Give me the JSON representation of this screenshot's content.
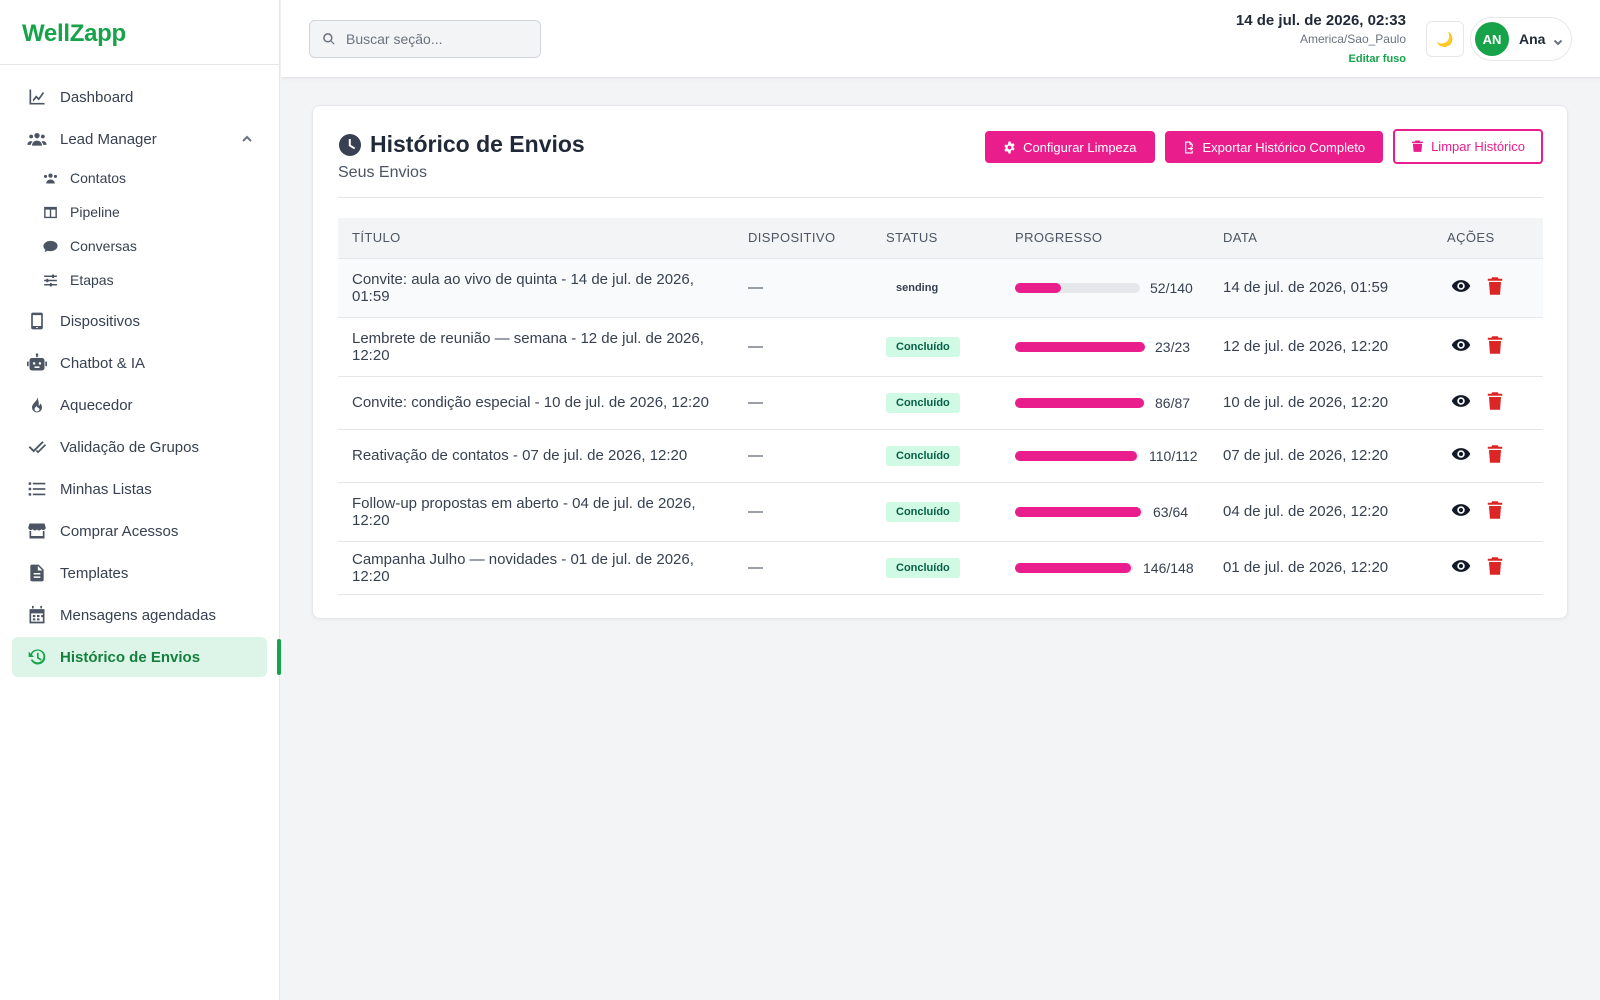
{
  "app": {
    "logo": "WellZapp"
  },
  "sidebar": {
    "items": [
      {
        "label": "Dashboard",
        "icon": "chart-line-icon"
      },
      {
        "label": "Lead Manager",
        "icon": "users-icon",
        "expanded": true,
        "children": [
          {
            "label": "Contatos",
            "icon": "contacts-icon"
          },
          {
            "label": "Pipeline",
            "icon": "columns-icon"
          },
          {
            "label": "Conversas",
            "icon": "chat-icon"
          },
          {
            "label": "Etapas",
            "icon": "sliders-icon"
          }
        ]
      },
      {
        "label": "Dispositivos",
        "icon": "mobile-icon"
      },
      {
        "label": "Chatbot & IA",
        "icon": "robot-icon"
      },
      {
        "label": "Aquecedor",
        "icon": "fire-icon"
      },
      {
        "label": "Validação de Grupos",
        "icon": "double-check-icon"
      },
      {
        "label": "Minhas Listas",
        "icon": "list-icon"
      },
      {
        "label": "Comprar Acessos",
        "icon": "store-icon"
      },
      {
        "label": "Templates",
        "icon": "file-icon"
      },
      {
        "label": "Mensagens agendadas",
        "icon": "calendar-icon"
      },
      {
        "label": "Histórico de Envios",
        "icon": "history-icon",
        "active": true
      }
    ]
  },
  "header": {
    "search_placeholder": "Buscar seção...",
    "datetime": "14 de jul. de 2026, 02:33",
    "timezone": "America/Sao_Paulo",
    "edit_tz": "Editar fuso",
    "user": {
      "initials": "AN",
      "name": "Ana"
    }
  },
  "main": {
    "title": "Histórico de Envios",
    "subtitle": "Seus Envios",
    "buttons": {
      "configure": "Configurar Limpeza",
      "export": "Exportar Histórico Completo",
      "clear": "Limpar Histórico"
    },
    "table": {
      "headers": {
        "title": "TÍTULO",
        "device": "DISPOSITIVO",
        "status": "STATUS",
        "progress": "PROGRESSO",
        "date": "DATA",
        "actions": "AÇÕES"
      },
      "rows": [
        {
          "title": "Convite: aula ao vivo de quinta - 14 de jul. de 2026, 01:59",
          "device": "—",
          "status": "sending",
          "sent": 52,
          "total": 140,
          "progress_label": "52/140",
          "date": "14 de jul. de 2026, 01:59"
        },
        {
          "title": "Lembrete de reunião — semana - 12 de jul. de 2026, 12:20",
          "device": "—",
          "status": "Concluído",
          "sent": 23,
          "total": 23,
          "progress_label": "23/23",
          "date": "12 de jul. de 2026, 12:20"
        },
        {
          "title": "Convite: condição especial - 10 de jul. de 2026, 12:20",
          "device": "—",
          "status": "Concluído",
          "sent": 86,
          "total": 87,
          "progress_label": "86/87",
          "date": "10 de jul. de 2026, 12:20"
        },
        {
          "title": "Reativação de contatos - 07 de jul. de 2026, 12:20",
          "device": "—",
          "status": "Concluído",
          "sent": 110,
          "total": 112,
          "progress_label": "110/112",
          "date": "07 de jul. de 2026, 12:20"
        },
        {
          "title": "Follow-up propostas em aberto - 04 de jul. de 2026, 12:20",
          "device": "—",
          "status": "Concluído",
          "sent": 63,
          "total": 64,
          "progress_label": "63/64",
          "date": "04 de jul. de 2026, 12:20"
        },
        {
          "title": "Campanha Julho — novidades - 01 de jul. de 2026, 12:20",
          "device": "—",
          "status": "Concluído",
          "sent": 146,
          "total": 148,
          "progress_label": "146/148",
          "date": "01 de jul. de 2026, 12:20"
        }
      ]
    }
  },
  "colors": {
    "brand": "#16a34a",
    "accent": "#e91e8c",
    "danger": "#dc2626"
  }
}
